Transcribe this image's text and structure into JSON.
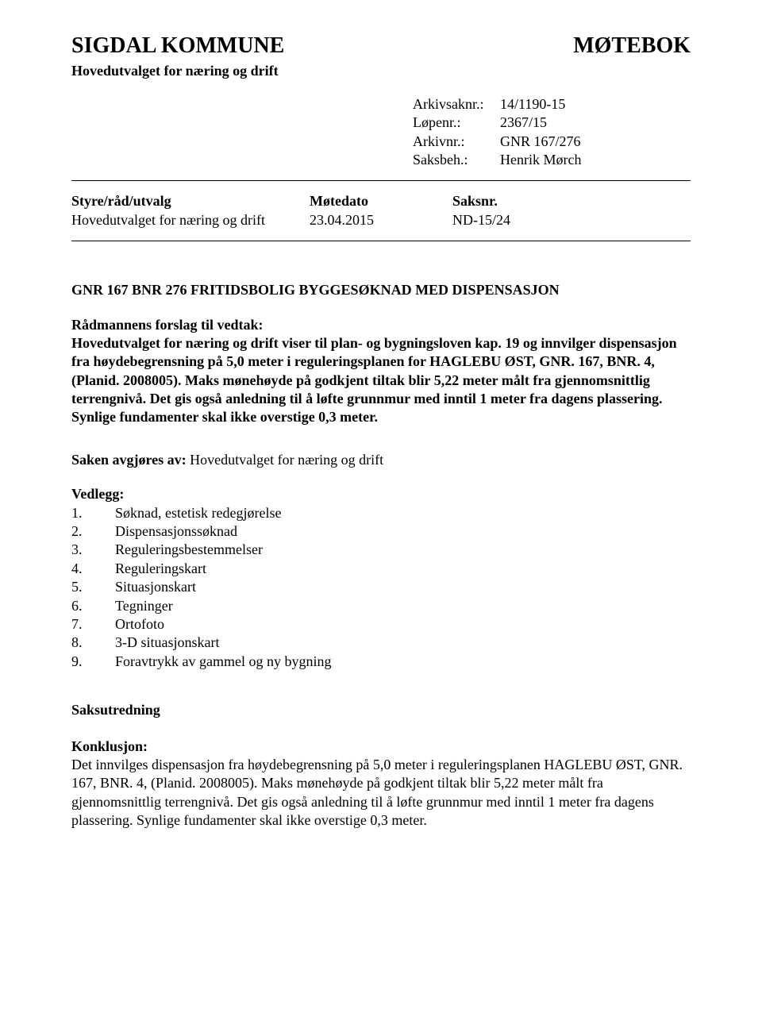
{
  "header": {
    "title_left": "SIGDAL KOMMUNE",
    "title_right": "MØTEBOK",
    "subtitle": "Hovedutvalget for næring og drift"
  },
  "metadata": {
    "arkivsaknr": {
      "label": "Arkivsaknr.:",
      "value": "14/1190-15"
    },
    "lopenr": {
      "label": "Løpenr.:",
      "value": "2367/15"
    },
    "arkivnr": {
      "label": "Arkivnr.:",
      "value": "GNR 167/276"
    },
    "saksbeh": {
      "label": "Saksbeh.:",
      "value": "Henrik Mørch"
    }
  },
  "table": {
    "header": {
      "col1": "Styre/råd/utvalg",
      "col2": "Møtedato",
      "col3": "Saksnr."
    },
    "row": {
      "col1": "Hovedutvalget for næring og drift",
      "col2": "23.04.2015",
      "col3": "ND-15/24"
    }
  },
  "case_title": "GNR 167 BNR 276 FRITIDSBOLIG BYGGESØKNAD MED DISPENSASJON",
  "proposal": {
    "label": "Rådmannens forslag til vedtak:",
    "body": "Hovedutvalget for næring og drift viser til plan- og bygningsloven kap. 19 og innvilger dispensasjon fra høydebegrensning på 5,0 meter i reguleringsplanen for HAGLEBU ØST, GNR. 167, BNR. 4, (Planid. 2008005). Maks mønehøyde på godkjent tiltak blir 5,22 meter målt fra gjennomsnittlig terrengnivå. Det gis også anledning til å løfte grunnmur med inntil 1 meter fra dagens plassering. Synlige fundamenter skal ikke overstige 0,3 meter."
  },
  "decided_by": {
    "label": "Saken avgjøres av: ",
    "value": "Hovedutvalget for næring og drift"
  },
  "vedlegg": {
    "title": "Vedlegg:",
    "items": [
      {
        "num": "1.",
        "text": "Søknad, estetisk redegjørelse"
      },
      {
        "num": "2.",
        "text": "Dispensasjonssøknad"
      },
      {
        "num": "3.",
        "text": "Reguleringsbestemmelser"
      },
      {
        "num": "4.",
        "text": "Reguleringskart"
      },
      {
        "num": "5.",
        "text": "Situasjonskart"
      },
      {
        "num": "6.",
        "text": "Tegninger"
      },
      {
        "num": "7.",
        "text": "Ortofoto"
      },
      {
        "num": "8.",
        "text": "3-D situasjonskart"
      },
      {
        "num": "9.",
        "text": "Foravtrykk av gammel og ny bygning"
      }
    ]
  },
  "saksutredning": "Saksutredning",
  "konklusjon": {
    "label": "Konklusjon:",
    "body": "Det innvilges dispensasjon fra høydebegrensning på 5,0 meter i reguleringsplanen HAGLEBU ØST, GNR. 167, BNR. 4, (Planid. 2008005). Maks mønehøyde på godkjent tiltak blir 5,22 meter målt fra gjennomsnittlig terrengnivå. Det gis også anledning til å løfte grunnmur med inntil 1 meter fra dagens plassering. Synlige fundamenter skal ikke overstige 0,3 meter."
  },
  "colors": {
    "text": "#000000",
    "background": "#ffffff",
    "divider": "#000000"
  },
  "typography": {
    "title_fontsize": 28,
    "body_fontsize": 18,
    "font_family": "Times New Roman"
  }
}
